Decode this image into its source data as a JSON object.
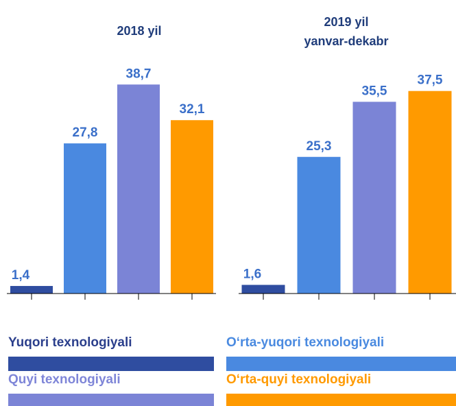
{
  "chart_data": [
    {
      "type": "bar",
      "title": "2018 yil",
      "values": [
        1.4,
        27.8,
        38.7,
        32.1
      ],
      "value_labels": [
        "1,4",
        "27,8",
        "38,7",
        "32,1"
      ],
      "ylim": [
        0,
        40
      ]
    },
    {
      "type": "bar",
      "title": "2019 yil",
      "subtitle": "yanvar-dekabr",
      "values": [
        1.6,
        25.3,
        35.5,
        37.5
      ],
      "value_labels": [
        "1,6",
        "25,3",
        "35,5",
        "37,5"
      ],
      "ylim": [
        0,
        40
      ]
    }
  ],
  "legend": [
    {
      "name": "Yuqori texnologiyali",
      "color": "#2f4da0"
    },
    {
      "name": "O‘rta-yuqori texnologiyali",
      "color": "#4a89e0"
    },
    {
      "name": "Quyi texnologiyali",
      "color": "#7b84d6"
    },
    {
      "name": "O‘rta-quyi texnologiyali",
      "color": "#ff9a00"
    }
  ]
}
